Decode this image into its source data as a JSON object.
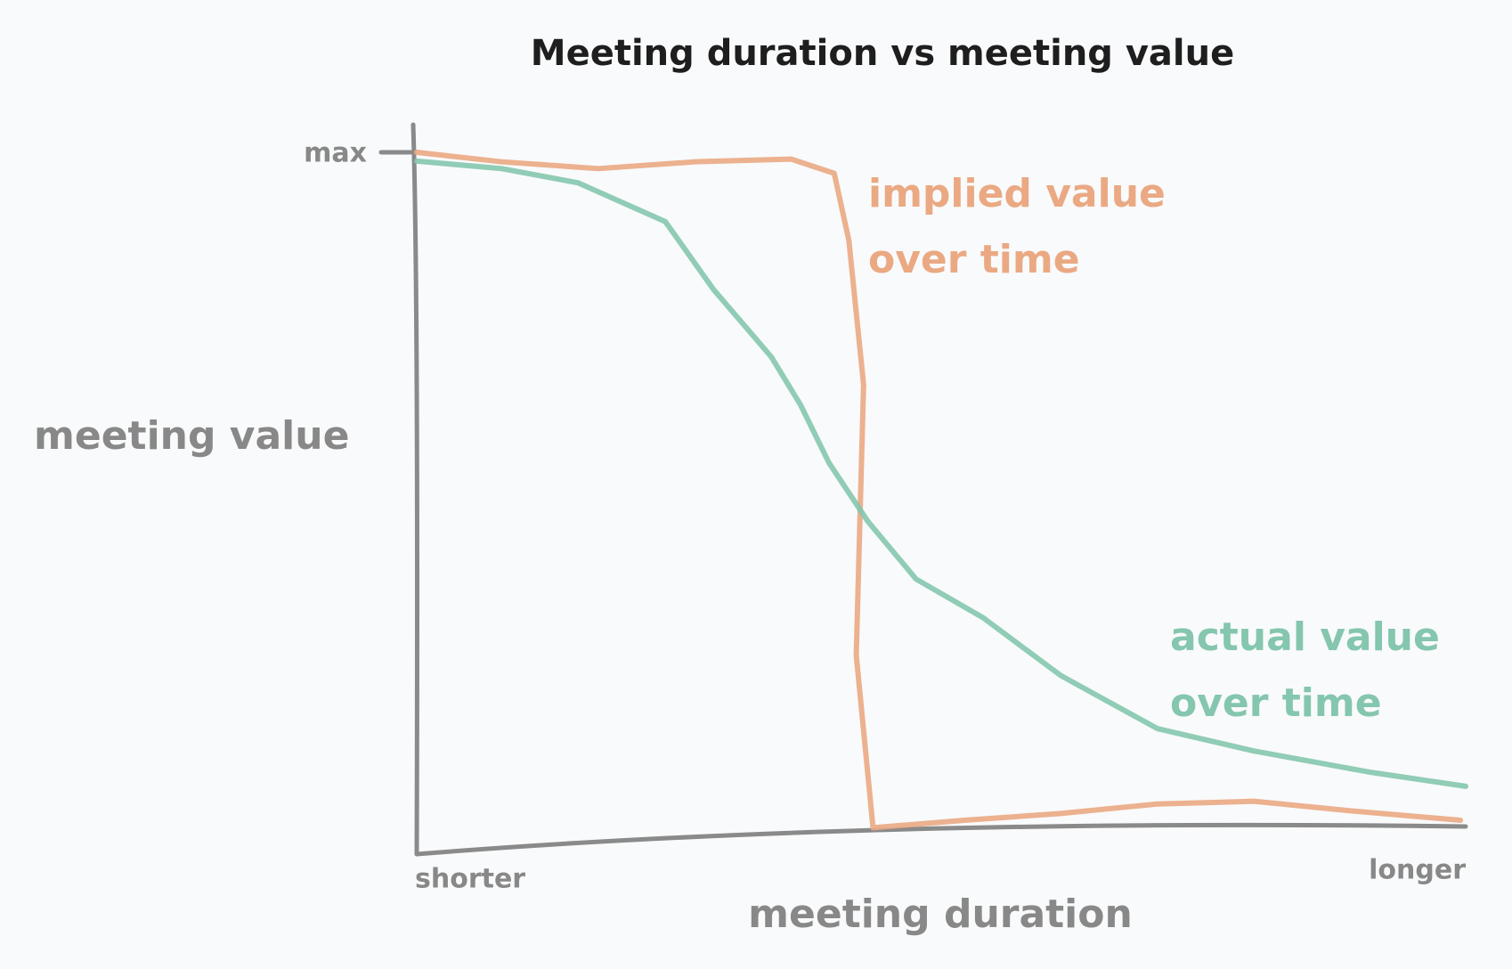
{
  "chart_data": {
    "type": "line",
    "title": "Meeting duration vs meeting value",
    "x_label": "meeting duration",
    "y_label": "meeting value",
    "xlim": [
      0,
      100
    ],
    "ylim": [
      0,
      100
    ],
    "xticks": [
      {
        "value": 0,
        "label": "shorter"
      },
      {
        "value": 100,
        "label": "longer"
      }
    ],
    "yticks": [
      {
        "value": 100,
        "label": "max"
      }
    ],
    "grid": false,
    "series": [
      {
        "name": "implied value over time",
        "color": "#eaa983",
        "x": [
          0,
          8.1,
          17.3,
          26.5,
          35.7,
          39.8,
          41.2,
          42.6,
          41.9,
          43.5,
          52.2,
          61.4,
          70.6,
          79.8,
          89,
          99.5
        ],
        "values": [
          100,
          98.6,
          97.6,
          98.6,
          99,
          96.9,
          87,
          65.8,
          26,
          0.6,
          1.7,
          2.7,
          4.1,
          4.5,
          3.1,
          1.7
        ]
      },
      {
        "name": "actual value over time",
        "color": "#84c6ae",
        "x": [
          0,
          8.1,
          15.4,
          23.7,
          28.3,
          33.8,
          36.6,
          39.3,
          43,
          47.6,
          54,
          61.4,
          70.6,
          79.8,
          90.8,
          100
        ],
        "values": [
          98.7,
          97.6,
          95.5,
          89.8,
          79.8,
          69.9,
          62.8,
          54.3,
          45.7,
          37.2,
          31.5,
          23,
          15.2,
          11.9,
          8.8,
          6.7
        ]
      }
    ]
  }
}
